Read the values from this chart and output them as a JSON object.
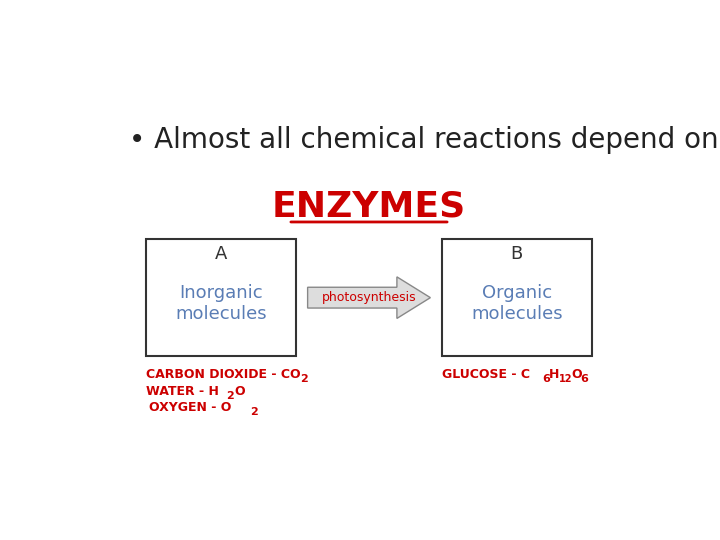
{
  "background_color": "#ffffff",
  "bullet_text": "Almost all chemical reactions depend on",
  "bullet_fontsize": 20,
  "enzymes_text": "ENZYMES",
  "enzymes_color": "#cc0000",
  "enzymes_fontsize": 26,
  "box_a_label": "A",
  "box_a_content": "Inorganic\nmolecules",
  "box_b_label": "B",
  "box_b_content": "Organic\nmolecules",
  "box_text_color": "#5a7db5",
  "box_label_color": "#333333",
  "box_edge_color": "#333333",
  "arrow_label": "photosynthesis",
  "arrow_label_color": "#cc0000",
  "arrow_body_color": "#dddddd",
  "arrow_edge_color": "#888888",
  "label_color": "#cc0000",
  "label_fontsize": 9
}
